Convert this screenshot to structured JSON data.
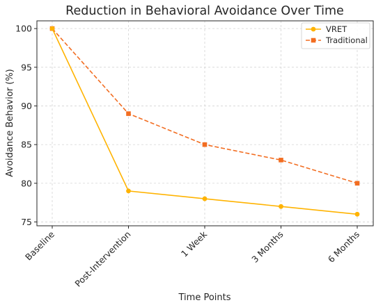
{
  "chart_data": {
    "type": "line",
    "title": "Reduction in Behavioral Avoidance Over Time",
    "xlabel": "Time Points",
    "ylabel": "Avoidance Behavior (%)",
    "categories": [
      "Baseline",
      "Post-Intervention",
      "1 Week",
      "3 Months",
      "6 Months"
    ],
    "ylim": [
      74.5,
      101
    ],
    "yticks": [
      75,
      80,
      85,
      90,
      95,
      100
    ],
    "grid": true,
    "legend_position": "top-right",
    "series": [
      {
        "name": "VRET",
        "values": [
          100,
          79,
          78,
          77,
          76
        ],
        "color": "#ffb300",
        "marker": "circle",
        "line_style": "solid"
      },
      {
        "name": "Traditional",
        "values": [
          100,
          89,
          85,
          83,
          80
        ],
        "color": "#f26d21",
        "marker": "square",
        "line_style": "dashed"
      }
    ]
  }
}
